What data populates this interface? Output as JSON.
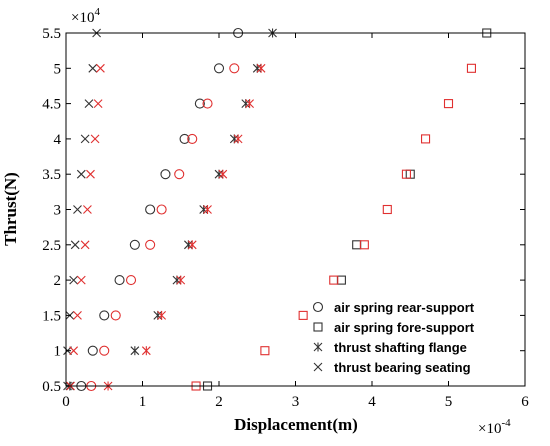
{
  "chart_data": {
    "type": "scatter",
    "title": "",
    "xlabel": "Displacement(m)",
    "ylabel": "Thrust(N)",
    "x_multiplier_label": "×10",
    "x_multiplier_exp": "-4",
    "y_multiplier_label": "×10",
    "y_multiplier_exp": "4",
    "xlim": [
      0,
      6
    ],
    "ylim": [
      0.5,
      5.5
    ],
    "xticks": [
      0,
      1,
      2,
      3,
      4,
      5,
      6
    ],
    "yticks": [
      0.5,
      1,
      1.5,
      2,
      2.5,
      3,
      3.5,
      4,
      4.5,
      5,
      5.5
    ],
    "xtick_labels": [
      "0",
      "1",
      "2",
      "3",
      "4",
      "5",
      "6"
    ],
    "ytick_labels": [
      "0.5",
      "1",
      "1.5",
      "2",
      "2.5",
      "3",
      "3.5",
      "4",
      "4.5",
      "5",
      "5.5"
    ],
    "grid": false,
    "legend_position": "bottom-right",
    "colors": {
      "series_a": "#333333",
      "series_b": "#e03030",
      "axis": "#000000"
    },
    "series": [
      {
        "name": "air spring rear-support",
        "marker": "circle",
        "color": "#333333",
        "points": [
          [
            0.2,
            0.5
          ],
          [
            0.35,
            1
          ],
          [
            0.5,
            1.5
          ],
          [
            0.7,
            2
          ],
          [
            0.9,
            2.5
          ],
          [
            1.1,
            3
          ],
          [
            1.3,
            3.5
          ],
          [
            1.55,
            4
          ],
          [
            1.75,
            4.5
          ],
          [
            2.0,
            5
          ],
          [
            2.25,
            5.5
          ]
        ]
      },
      {
        "name": "",
        "marker": "circle",
        "color": "#e03030",
        "points": [
          [
            0.33,
            0.5
          ],
          [
            0.5,
            1
          ],
          [
            0.65,
            1.5
          ],
          [
            0.85,
            2
          ],
          [
            1.1,
            2.5
          ],
          [
            1.25,
            3
          ],
          [
            1.48,
            3.5
          ],
          [
            1.65,
            4
          ],
          [
            1.85,
            4.5
          ],
          [
            2.2,
            5
          ]
        ]
      },
      {
        "name": "air spring fore-support",
        "marker": "square",
        "color": "#333333",
        "points": [
          [
            1.85,
            0.5
          ],
          [
            3.6,
            2
          ],
          [
            3.8,
            2.5
          ],
          [
            4.5,
            3.5
          ],
          [
            5.5,
            5.5
          ]
        ]
      },
      {
        "name": "",
        "marker": "square",
        "color": "#e03030",
        "points": [
          [
            1.7,
            0.5
          ],
          [
            2.6,
            1
          ],
          [
            3.1,
            1.5
          ],
          [
            3.5,
            2
          ],
          [
            3.9,
            2.5
          ],
          [
            4.2,
            3
          ],
          [
            4.45,
            3.5
          ],
          [
            4.7,
            4
          ],
          [
            5.0,
            4.5
          ],
          [
            5.3,
            5
          ]
        ]
      },
      {
        "name": "thrust shafting flange",
        "marker": "asterisk",
        "color": "#333333",
        "points": [
          [
            0.05,
            0.5
          ],
          [
            0.9,
            1
          ],
          [
            1.2,
            1.5
          ],
          [
            1.45,
            2
          ],
          [
            1.6,
            2.5
          ],
          [
            1.8,
            3
          ],
          [
            2.0,
            3.5
          ],
          [
            2.2,
            4
          ],
          [
            2.35,
            4.5
          ],
          [
            2.5,
            5
          ],
          [
            2.7,
            5.5
          ]
        ]
      },
      {
        "name": "",
        "marker": "asterisk",
        "color": "#e03030",
        "points": [
          [
            0.55,
            0.5
          ],
          [
            1.05,
            1
          ],
          [
            1.25,
            1.5
          ],
          [
            1.5,
            2
          ],
          [
            1.65,
            2.5
          ],
          [
            1.85,
            3
          ],
          [
            2.05,
            3.5
          ],
          [
            2.25,
            4
          ],
          [
            2.4,
            4.5
          ],
          [
            2.55,
            5
          ]
        ]
      },
      {
        "name": "thrust bearing seating",
        "marker": "cross",
        "color": "#333333",
        "points": [
          [
            0.02,
            0.5
          ],
          [
            0.02,
            1
          ],
          [
            0.05,
            1.5
          ],
          [
            0.1,
            2
          ],
          [
            0.12,
            2.5
          ],
          [
            0.15,
            3
          ],
          [
            0.2,
            3.5
          ],
          [
            0.25,
            4
          ],
          [
            0.3,
            4.5
          ],
          [
            0.35,
            5
          ],
          [
            0.4,
            5.5
          ]
        ]
      },
      {
        "name": "",
        "marker": "cross",
        "color": "#e03030",
        "points": [
          [
            0.06,
            0.5
          ],
          [
            0.1,
            1
          ],
          [
            0.15,
            1.5
          ],
          [
            0.2,
            2
          ],
          [
            0.25,
            2.5
          ],
          [
            0.28,
            3
          ],
          [
            0.32,
            3.5
          ],
          [
            0.38,
            4
          ],
          [
            0.42,
            4.5
          ],
          [
            0.45,
            5
          ]
        ]
      }
    ]
  }
}
